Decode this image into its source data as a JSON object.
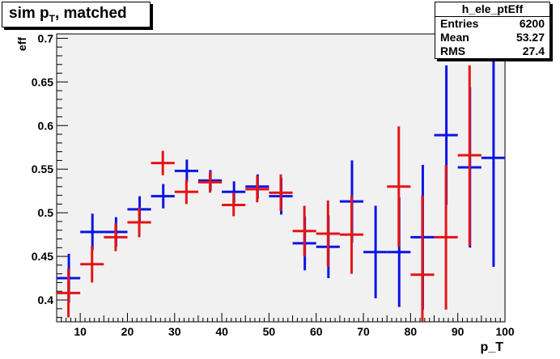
{
  "title": {
    "main": "sim p",
    "sub": "T",
    "rest": ", matched"
  },
  "stats": {
    "name": "h_ele_ptEff",
    "rows": [
      {
        "label": "Entries",
        "value": "6200"
      },
      {
        "label": "Mean",
        "value": "53.27"
      },
      {
        "label": "RMS",
        "value": "27.4"
      }
    ]
  },
  "colors": {
    "blue": "#0a14e6",
    "red": "#e61414",
    "frame_bg": "#f2f1f2"
  },
  "chart_data": {
    "type": "scatter",
    "xlabel": "p_T",
    "ylabel": "eff",
    "xlim": [
      5,
      100
    ],
    "ylim": [
      0.375,
      0.705
    ],
    "x_ticks": [
      10,
      20,
      30,
      40,
      50,
      60,
      70,
      80,
      90,
      100
    ],
    "y_ticks": [
      0.4,
      0.45,
      0.5,
      0.55,
      0.6,
      0.65,
      0.7
    ],
    "y_tick_labels": [
      "0.4",
      "0.45",
      "0.5",
      "0.55",
      "0.6",
      "0.65",
      "0.7"
    ],
    "series": [
      {
        "color": "blue",
        "x_offset": 0.5,
        "points": [
          {
            "x": 7.5,
            "y": 0.425,
            "lo": 0.397,
            "hi": 0.453
          },
          {
            "x": 12.5,
            "y": 0.478,
            "lo": 0.457,
            "hi": 0.499
          },
          {
            "x": 17.5,
            "y": 0.478,
            "lo": 0.461,
            "hi": 0.495
          },
          {
            "x": 22.5,
            "y": 0.504,
            "lo": 0.489,
            "hi": 0.519
          },
          {
            "x": 27.5,
            "y": 0.519,
            "lo": 0.505,
            "hi": 0.533
          },
          {
            "x": 32.5,
            "y": 0.548,
            "lo": 0.535,
            "hi": 0.561
          },
          {
            "x": 37.5,
            "y": 0.537,
            "lo": 0.525,
            "hi": 0.549
          },
          {
            "x": 42.5,
            "y": 0.524,
            "lo": 0.511,
            "hi": 0.536
          },
          {
            "x": 47.5,
            "y": 0.53,
            "lo": 0.516,
            "hi": 0.544
          },
          {
            "x": 52.5,
            "y": 0.519,
            "lo": 0.498,
            "hi": 0.54
          },
          {
            "x": 57.5,
            "y": 0.465,
            "lo": 0.434,
            "hi": 0.496
          },
          {
            "x": 62.5,
            "y": 0.461,
            "lo": 0.425,
            "hi": 0.497
          },
          {
            "x": 67.5,
            "y": 0.513,
            "lo": 0.466,
            "hi": 0.56
          },
          {
            "x": 72.5,
            "y": 0.455,
            "lo": 0.402,
            "hi": 0.508
          },
          {
            "x": 77.5,
            "y": 0.455,
            "lo": 0.392,
            "hi": 0.518
          },
          {
            "x": 82.5,
            "y": 0.472,
            "lo": 0.389,
            "hi": 0.555
          },
          {
            "x": 87.5,
            "y": 0.589,
            "lo": 0.509,
            "hi": 0.669
          },
          {
            "x": 92.5,
            "y": 0.552,
            "lo": 0.46,
            "hi": 0.644
          },
          {
            "x": 97.5,
            "y": 0.563,
            "lo": 0.438,
            "hi": 0.688
          }
        ]
      },
      {
        "color": "red",
        "x_offset": 0,
        "points": [
          {
            "x": 7.5,
            "y": 0.408,
            "lo": 0.38,
            "hi": 0.436
          },
          {
            "x": 12.5,
            "y": 0.441,
            "lo": 0.42,
            "hi": 0.462
          },
          {
            "x": 17.5,
            "y": 0.472,
            "lo": 0.456,
            "hi": 0.488
          },
          {
            "x": 22.5,
            "y": 0.489,
            "lo": 0.472,
            "hi": 0.506
          },
          {
            "x": 27.5,
            "y": 0.557,
            "lo": 0.543,
            "hi": 0.571
          },
          {
            "x": 32.5,
            "y": 0.524,
            "lo": 0.51,
            "hi": 0.538
          },
          {
            "x": 37.5,
            "y": 0.535,
            "lo": 0.523,
            "hi": 0.547
          },
          {
            "x": 42.5,
            "y": 0.509,
            "lo": 0.496,
            "hi": 0.523
          },
          {
            "x": 47.5,
            "y": 0.527,
            "lo": 0.512,
            "hi": 0.542
          },
          {
            "x": 52.5,
            "y": 0.523,
            "lo": 0.502,
            "hi": 0.544
          },
          {
            "x": 57.5,
            "y": 0.479,
            "lo": 0.45,
            "hi": 0.508
          },
          {
            "x": 62.5,
            "y": 0.476,
            "lo": 0.438,
            "hi": 0.514
          },
          {
            "x": 67.5,
            "y": 0.475,
            "lo": 0.43,
            "hi": 0.52
          },
          {
            "x": 77.5,
            "y": 0.53,
            "lo": 0.461,
            "hi": 0.599
          },
          {
            "x": 82.5,
            "y": 0.429,
            "lo": 0.375,
            "hi": 0.52
          },
          {
            "x": 87.5,
            "y": 0.472,
            "lo": 0.389,
            "hi": 0.555
          },
          {
            "x": 92.5,
            "y": 0.566,
            "lo": 0.462,
            "hi": 0.669
          }
        ]
      }
    ]
  }
}
